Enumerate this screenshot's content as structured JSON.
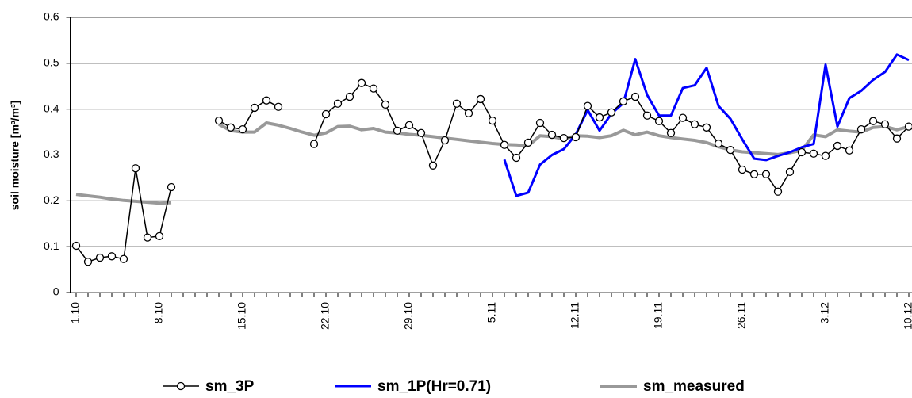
{
  "chart_data": {
    "type": "line",
    "y_label": "soil moisture [m³/m³]",
    "categories": [
      "1.10",
      null,
      null,
      null,
      null,
      null,
      null,
      "8.10",
      null,
      null,
      null,
      null,
      null,
      null,
      "15.10",
      null,
      null,
      null,
      null,
      null,
      null,
      "22.10",
      null,
      null,
      null,
      null,
      null,
      null,
      "29.10",
      null,
      null,
      null,
      null,
      null,
      null,
      "5.11",
      null,
      null,
      null,
      null,
      null,
      null,
      "12.11",
      null,
      null,
      null,
      null,
      null,
      null,
      "19.11",
      null,
      null,
      null,
      null,
      null,
      null,
      "26.11",
      null,
      null,
      null,
      null,
      null,
      null,
      "3.12",
      null,
      null,
      null,
      null,
      null,
      null,
      "10.12"
    ],
    "ylim": [
      0,
      0.6
    ],
    "yticks": [
      0,
      0.1,
      0.2,
      0.3,
      0.4,
      0.5,
      0.6
    ],
    "grid": true,
    "legend": "bottom",
    "series": [
      {
        "name": "sm_3P",
        "color": "#000000",
        "width": 1.5,
        "markers": true,
        "values": [
          0.102,
          0.067,
          0.076,
          0.079,
          0.073,
          0.271,
          0.12,
          0.123,
          0.23,
          null,
          null,
          null,
          0.375,
          0.36,
          0.356,
          0.403,
          0.419,
          0.405,
          null,
          null,
          0.324,
          0.389,
          0.412,
          0.427,
          0.457,
          0.445,
          0.41,
          0.353,
          0.365,
          0.348,
          0.277,
          0.332,
          0.412,
          0.391,
          0.422,
          0.375,
          0.322,
          0.294,
          0.327,
          0.37,
          0.344,
          0.337,
          0.339,
          0.407,
          0.382,
          0.393,
          0.417,
          0.427,
          0.386,
          0.374,
          0.348,
          0.381,
          0.367,
          0.36,
          0.325,
          0.311,
          0.268,
          0.258,
          0.258,
          0.22,
          0.263,
          0.306,
          0.303,
          0.298,
          0.32,
          0.31,
          0.356,
          0.374,
          0.367,
          0.336,
          0.362
        ]
      },
      {
        "name": "sm_1P(Hr=0.71)",
        "color": "#0000ff",
        "width": 3,
        "markers": false,
        "values": [
          null,
          null,
          null,
          null,
          null,
          null,
          null,
          null,
          null,
          null,
          null,
          null,
          null,
          null,
          null,
          null,
          null,
          null,
          null,
          null,
          null,
          null,
          null,
          null,
          null,
          null,
          null,
          null,
          null,
          null,
          null,
          null,
          null,
          null,
          null,
          null,
          0.29,
          0.211,
          0.218,
          0.279,
          0.3,
          0.313,
          0.345,
          0.398,
          0.353,
          0.39,
          0.413,
          0.509,
          0.431,
          0.386,
          0.386,
          0.446,
          0.452,
          0.49,
          0.407,
          0.379,
          0.334,
          0.292,
          0.289,
          0.298,
          0.306,
          0.317,
          0.324,
          0.497,
          0.362,
          0.424,
          0.44,
          0.464,
          0.481,
          0.519,
          0.507
        ]
      },
      {
        "name": "sm_measured",
        "color": "#999999",
        "width": 4,
        "markers": false,
        "values": [
          0.214,
          0.211,
          0.208,
          0.204,
          0.201,
          0.199,
          0.197,
          0.195,
          0.196,
          null,
          null,
          null,
          0.367,
          0.353,
          0.35,
          0.35,
          0.37,
          0.365,
          0.358,
          0.35,
          0.343,
          0.348,
          0.362,
          0.363,
          0.355,
          0.358,
          0.35,
          0.348,
          0.345,
          0.343,
          0.34,
          0.337,
          0.334,
          0.331,
          0.328,
          0.325,
          0.323,
          0.322,
          0.32,
          0.342,
          0.34,
          0.335,
          0.342,
          0.341,
          0.338,
          0.342,
          0.354,
          0.344,
          0.35,
          0.342,
          0.338,
          0.335,
          0.332,
          0.327,
          0.318,
          0.311,
          0.307,
          0.305,
          0.303,
          0.301,
          0.305,
          0.31,
          0.344,
          0.34,
          0.355,
          0.352,
          0.35,
          0.36,
          0.362,
          0.355,
          0.362
        ]
      }
    ]
  }
}
